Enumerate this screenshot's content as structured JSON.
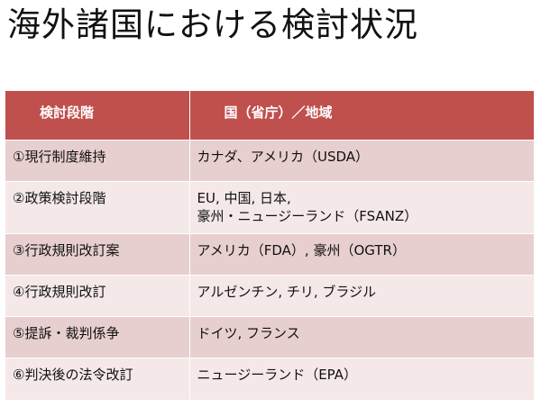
{
  "title": "海外諸国における検討状況",
  "table": {
    "headers": [
      "検討段階",
      "国（省庁）／地域"
    ],
    "rows": [
      {
        "stage": "①現行制度維持",
        "countries": [
          "カナダ、アメリカ（USDA）"
        ]
      },
      {
        "stage": "②政策検討段階",
        "countries": [
          "EU, 中国, 日本,",
          "豪州・ニュージーランド（FSANZ）"
        ]
      },
      {
        "stage": "③行政規則改訂案",
        "countries": [
          "アメリカ（FDA）, 豪州（OGTR）"
        ]
      },
      {
        "stage": "④行政規則改訂",
        "countries": [
          "アルゼンチン, チリ, ブラジル"
        ]
      },
      {
        "stage": "⑤提訴・裁判係争",
        "countries": [
          "ドイツ, フランス"
        ]
      },
      {
        "stage": "⑥判決後の法令改訂",
        "countries": [
          "ニュージーランド（EPA）"
        ]
      }
    ]
  },
  "colors": {
    "header_bg": "#c0504d",
    "row_dark": "#e8cfcf",
    "row_light": "#f4e8e8"
  }
}
